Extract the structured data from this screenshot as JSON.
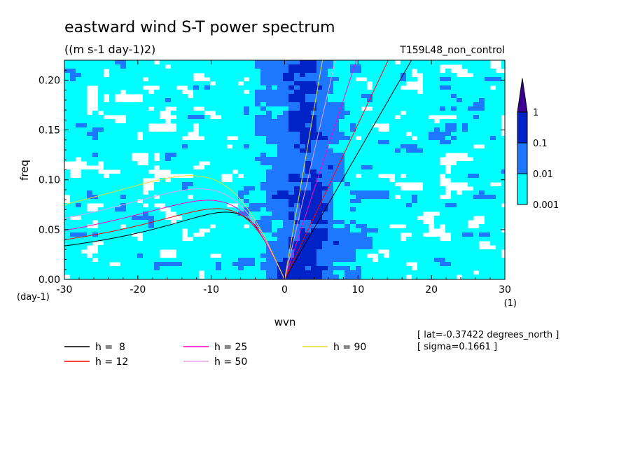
{
  "chart_data": {
    "type": "heatmap",
    "title": "eastward wind S-T power spectrum",
    "subtitle": "((m s-1 day-1)2)",
    "run_label": "T159L48_non_control",
    "xlabel": "wvn",
    "ylabel": "freq",
    "x_unit": "(1)",
    "y_unit": "(day-1)",
    "xlim": [
      -30,
      30
    ],
    "ylim": [
      0,
      0.22
    ],
    "x_ticks": [
      -30,
      -20,
      -10,
      0,
      10,
      20,
      30
    ],
    "x_tick_labels": [
      "-30",
      "-20",
      "-10",
      "0",
      "10",
      "20",
      "30"
    ],
    "y_ticks": [
      0,
      0.05,
      0.1,
      0.15,
      0.2
    ],
    "y_tick_labels": [
      "0.00",
      "0.05",
      "0.10",
      "0.15",
      "0.20"
    ],
    "colorbar": {
      "levels": [
        0.001,
        0.01,
        0.1,
        1
      ],
      "labels": [
        "0.001",
        "0.01",
        "0.1",
        "1"
      ],
      "colors": [
        "#00ffff",
        "#1e78ff",
        "#0023c8",
        "#3c0096"
      ],
      "background": "#ffffff"
    },
    "dispersion_curves": [
      {
        "label": "h =  8",
        "h": 8,
        "color": "#000000"
      },
      {
        "label": "h = 12",
        "h": 12,
        "color": "#ff0000"
      },
      {
        "label": "h = 25",
        "h": 25,
        "color": "#ff00c8"
      },
      {
        "label": "h = 50",
        "h": 50,
        "color": "#e6a0e6"
      },
      {
        "label": "h = 90",
        "h": 90,
        "color": "#e6dc32"
      }
    ],
    "info": [
      "[ lat=-0.37422 degrees_north ]",
      "[ sigma=0.1661 ]"
    ]
  }
}
